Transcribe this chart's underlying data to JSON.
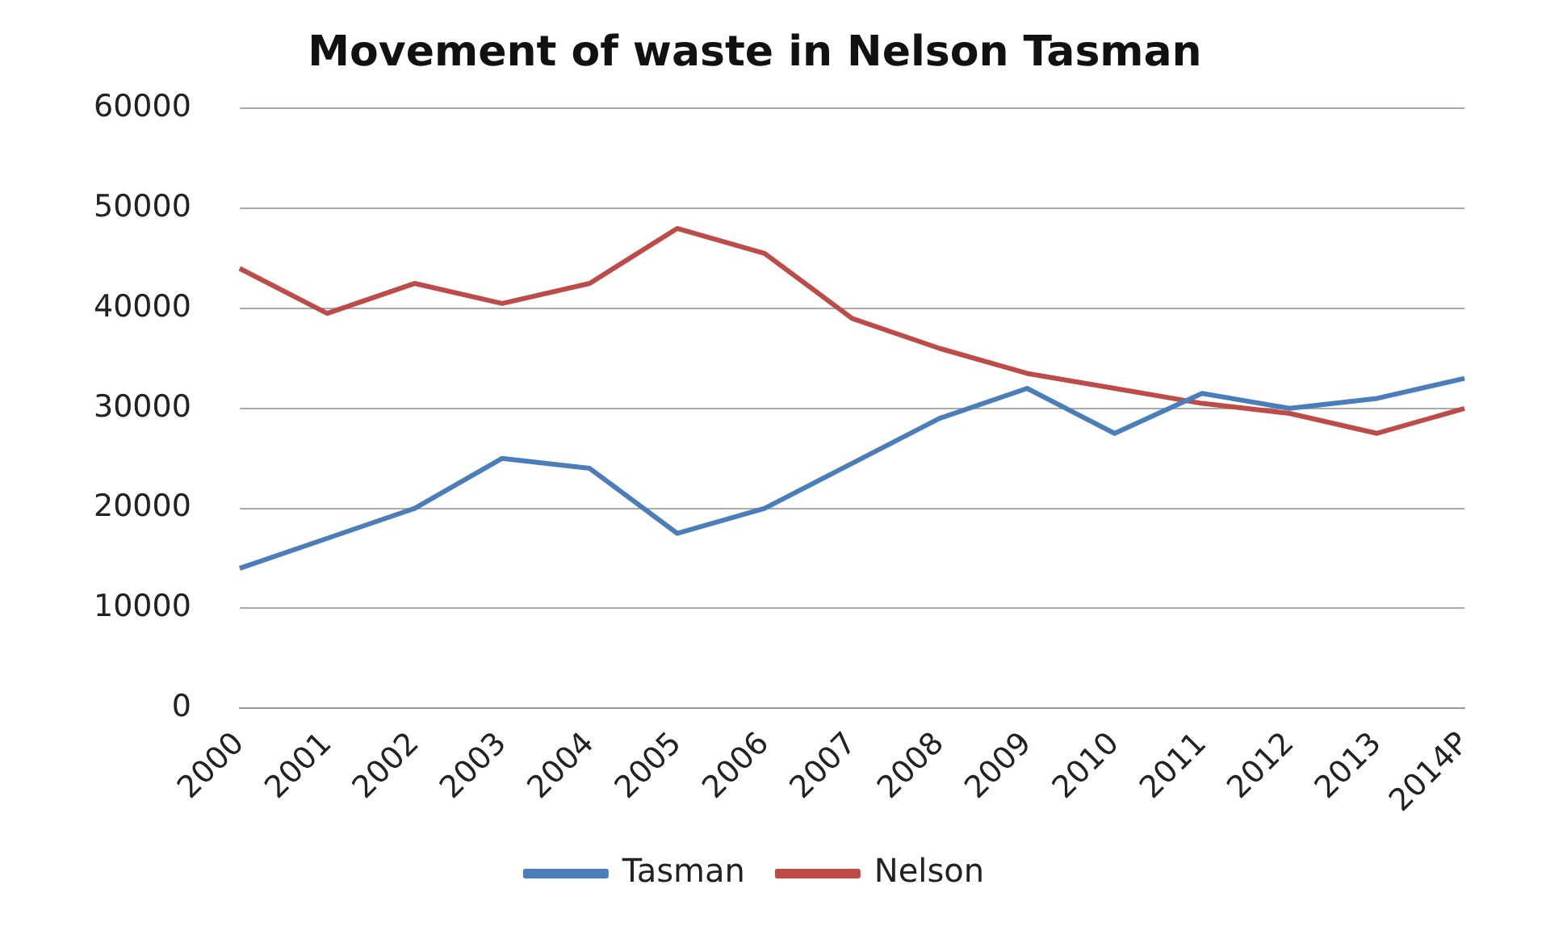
{
  "chart_data": {
    "type": "line",
    "title": "Movement of waste in Nelson Tasman",
    "categories": [
      "2000",
      "2001",
      "2002",
      "2003",
      "2004",
      "2005",
      "2006",
      "2007",
      "2008",
      "2009",
      "2010",
      "2011",
      "2012",
      "2013",
      "2014P"
    ],
    "series": [
      {
        "name": "Tasman",
        "color": "#4a7ebb",
        "values": [
          14000,
          17000,
          20000,
          25000,
          24000,
          17500,
          20000,
          24500,
          29000,
          32000,
          27500,
          31500,
          30000,
          31000,
          33000
        ]
      },
      {
        "name": "Nelson",
        "color": "#be4b48",
        "values": [
          44000,
          39500,
          42500,
          40500,
          42500,
          48000,
          45500,
          39000,
          36000,
          33500,
          32000,
          30500,
          29500,
          27500,
          30000
        ]
      }
    ],
    "ylim": [
      0,
      60000
    ],
    "yticks": [
      0,
      10000,
      20000,
      30000,
      40000,
      50000,
      60000
    ],
    "grid": "y",
    "legend": "bottom",
    "marker": "none",
    "line_style": "solid"
  }
}
